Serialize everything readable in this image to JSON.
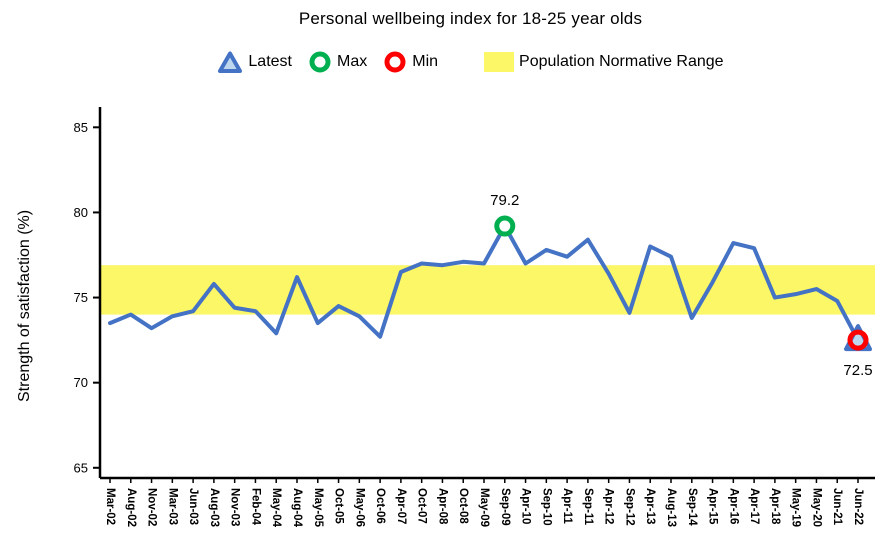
{
  "title": "Personal wellbeing index for 18-25 year olds",
  "legend": {
    "latest_label": "Latest",
    "max_label": "Max",
    "min_label": "Min",
    "range_label": "Population Normative Range"
  },
  "colors": {
    "line": "#4472C4",
    "latest_fill": "#BDD7EE",
    "max": "#00B050",
    "min": "#FF0000",
    "band": "#FCF766",
    "axis": "#000000"
  },
  "chart_data": {
    "type": "line",
    "title": "Personal wellbeing index for 18-25 year olds",
    "xlabel": "",
    "ylabel": "Strength of satisfaction (%)",
    "ylim": [
      64.4,
      85.9
    ],
    "yticks": [
      65,
      70,
      75,
      80,
      85
    ],
    "grid": false,
    "legend_position": "top",
    "legend_entries": [
      "Latest",
      "Max",
      "Min",
      "Population Normative Range"
    ],
    "normative_range": [
      74.0,
      76.9
    ],
    "categories": [
      "Mar-02",
      "Aug-02",
      "Nov-02",
      "Mar-03",
      "Jun-03",
      "Aug-03",
      "Nov-03",
      "Feb-04",
      "May-04",
      "Aug-04",
      "May-05",
      "Oct-05",
      "May-06",
      "Oct-06",
      "Apr-07",
      "Oct-07",
      "Apr-08",
      "Oct-08",
      "May-09",
      "Sep-09",
      "Apr-10",
      "Sep-10",
      "Apr-11",
      "Sep-11",
      "Apr-12",
      "Sep-12",
      "Apr-13",
      "Aug-13",
      "Sep-14",
      "Apr-15",
      "Apr-16",
      "Apr-17",
      "Apr-18",
      "May-19",
      "May-20",
      "Jun-21",
      "Jun-22"
    ],
    "values": [
      73.5,
      74.0,
      73.2,
      73.9,
      74.2,
      75.8,
      74.4,
      74.2,
      72.9,
      76.2,
      73.5,
      74.5,
      73.9,
      72.7,
      76.5,
      77.0,
      76.9,
      77.1,
      77.0,
      79.2,
      77.0,
      77.8,
      77.4,
      78.4,
      76.4,
      74.1,
      78.0,
      77.4,
      73.8,
      75.9,
      78.2,
      77.9,
      75.0,
      75.2,
      75.5,
      74.8,
      72.5
    ],
    "max_point": {
      "category": "Sep-09",
      "value": 79.2,
      "label": "79.2"
    },
    "min_point": {
      "category": "Jun-22",
      "value": 72.5,
      "label": "72.5"
    },
    "latest_point": {
      "category": "Jun-22",
      "value": 72.5
    }
  }
}
